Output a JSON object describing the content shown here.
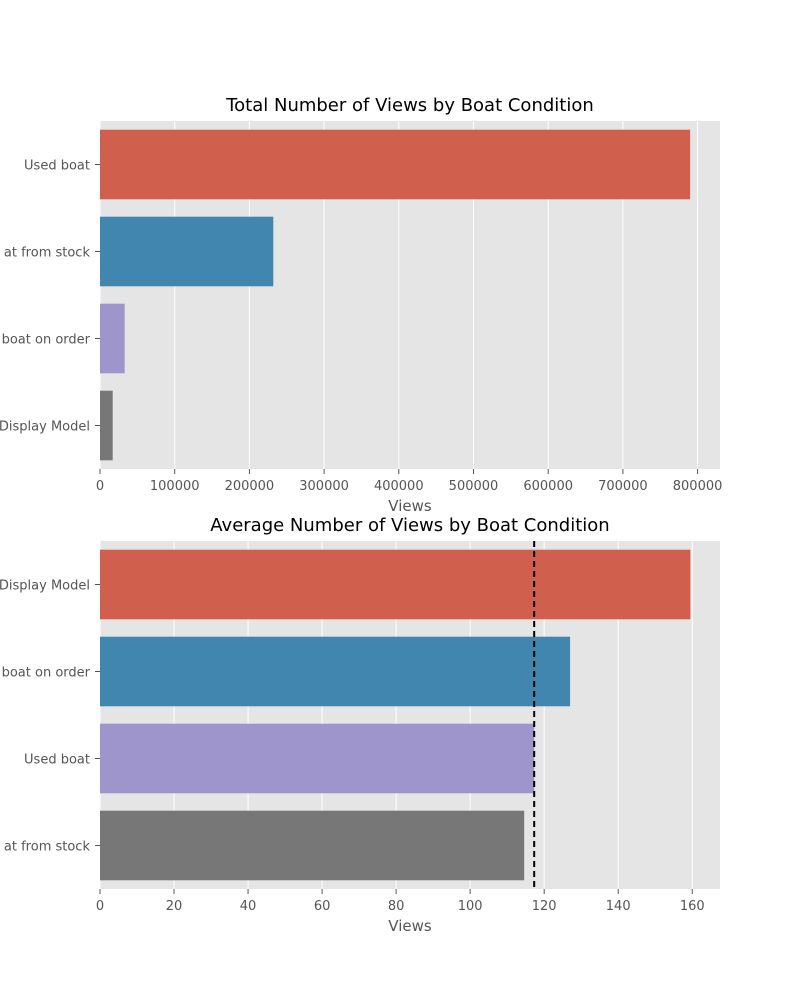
{
  "chart_data": [
    {
      "type": "bar",
      "orientation": "horizontal",
      "title": "Total Number of Views by Boat Condition",
      "xlabel": "Views",
      "ylabel": "",
      "categories": [
        "Used boat",
        "new boat from stock",
        "new boat on order",
        "Display Model"
      ],
      "category_labels": [
        "Used boat",
        "at from stock",
        "boat on order",
        "Display Model"
      ],
      "values": [
        790000,
        232000,
        33000,
        17000
      ],
      "colors": [
        "#d0604d",
        "#4186ae",
        "#9d95cb",
        "#777777"
      ],
      "xlim": [
        0,
        830000
      ],
      "xticks": [
        0,
        100000,
        200000,
        300000,
        400000,
        500000,
        600000,
        700000,
        800000
      ],
      "xtick_labels": [
        "0",
        "100000",
        "200000",
        "300000",
        "400000",
        "500000",
        "600000",
        "700000",
        "800000"
      ],
      "grid": true
    },
    {
      "type": "bar",
      "orientation": "horizontal",
      "title": "Average Number of Views by Boat Condition",
      "xlabel": "Views",
      "ylabel": "",
      "categories": [
        "Display Model",
        "new boat on order",
        "Used boat",
        "new boat from stock"
      ],
      "category_labels": [
        "Display Model",
        "boat on order",
        "Used boat",
        "at from stock"
      ],
      "values": [
        159.5,
        127,
        117.3,
        114.6
      ],
      "colors": [
        "#d0604d",
        "#4186ae",
        "#9d95cb",
        "#777777"
      ],
      "reference_line": {
        "value": 117.3,
        "style": "dashed",
        "color": "#000000"
      },
      "xlim": [
        0,
        167.5
      ],
      "xticks": [
        0,
        20,
        40,
        60,
        80,
        100,
        120,
        140,
        160
      ],
      "xtick_labels": [
        "0",
        "20",
        "40",
        "60",
        "80",
        "100",
        "120",
        "140",
        "160"
      ],
      "grid": true
    }
  ]
}
